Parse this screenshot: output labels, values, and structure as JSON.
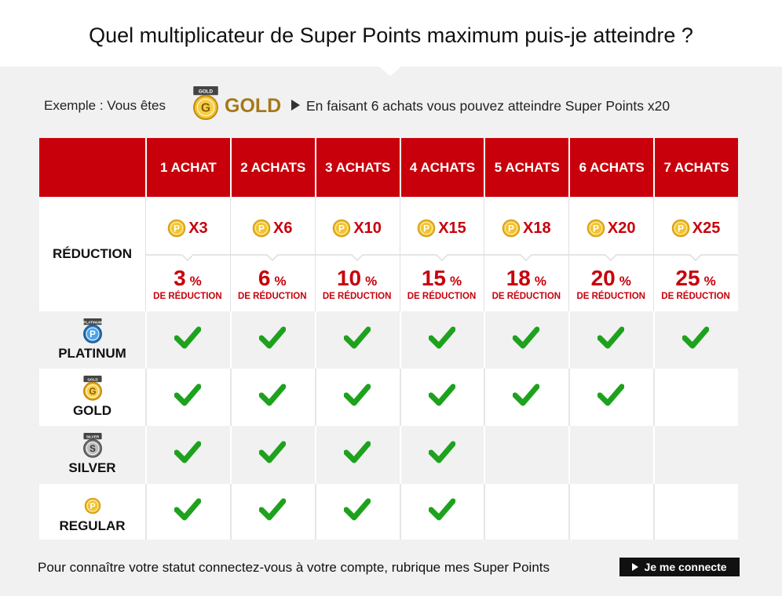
{
  "title": "Quel multiplicateur de Super Points maximum puis-je atteindre ?",
  "example": {
    "prefix": "Exemple : Vous êtes",
    "badge_top": "GOLD",
    "badge_letter": "G",
    "badge_name": "GOLD",
    "text": "En faisant 6 achats vous pouvez atteindre Super Points x20"
  },
  "coin_letter": "P",
  "table": {
    "columns": [
      "1 ACHAT",
      "2 ACHATS",
      "3 ACHATS",
      "4 ACHATS",
      "5 ACHATS",
      "6 ACHATS",
      "7 ACHATS"
    ],
    "reduction_label": "RÉDUCTION",
    "multipliers": [
      "X3",
      "X6",
      "X10",
      "X15",
      "X18",
      "X20",
      "X25"
    ],
    "reductions": [
      {
        "value": "3",
        "unit": "%",
        "caption": "DE RÉDUCTION"
      },
      {
        "value": "6",
        "unit": "%",
        "caption": "DE RÉDUCTION"
      },
      {
        "value": "10",
        "unit": "%",
        "caption": "DE RÉDUCTION"
      },
      {
        "value": "15",
        "unit": "%",
        "caption": "DE RÉDUCTION"
      },
      {
        "value": "18",
        "unit": "%",
        "caption": "DE RÉDUCTION"
      },
      {
        "value": "20",
        "unit": "%",
        "caption": "DE RÉDUCTION"
      },
      {
        "value": "25",
        "unit": "%",
        "caption": "DE RÉDUCTION"
      }
    ],
    "tiers": [
      {
        "name": "PLATINUM",
        "badge_top": "PLATINUM",
        "letter": "P",
        "checks": [
          true,
          true,
          true,
          true,
          true,
          true,
          true
        ]
      },
      {
        "name": "GOLD",
        "badge_top": "GOLD",
        "letter": "G",
        "checks": [
          true,
          true,
          true,
          true,
          true,
          true,
          false
        ]
      },
      {
        "name": "SILVER",
        "badge_top": "SILVER",
        "letter": "S",
        "checks": [
          true,
          true,
          true,
          true,
          false,
          false,
          false
        ]
      },
      {
        "name": "REGULAR",
        "letter": "P",
        "checks": [
          true,
          true,
          true,
          true,
          false,
          false,
          false
        ]
      }
    ]
  },
  "footer": {
    "text": "Pour connaître votre statut connectez-vous à votre compte, rubrique mes Super Points",
    "button": "Je me connecte"
  }
}
